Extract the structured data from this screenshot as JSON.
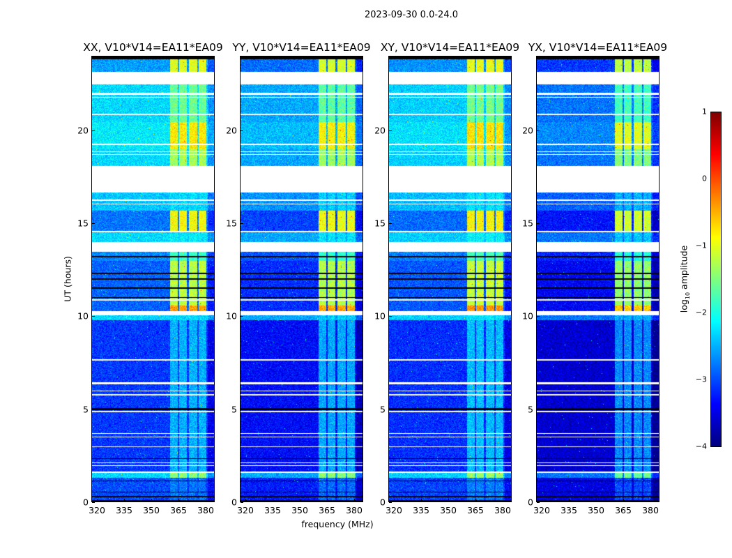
{
  "figure": {
    "suptitle": "2023-09-30 0.0-24.0",
    "xlabel": "frequency (MHz)",
    "ylabel": "UT (hours)"
  },
  "colorbar": {
    "label_prefix": "log",
    "label_sub": "10",
    "label_suffix": " amplitude",
    "range": [
      -4,
      1
    ],
    "ticks": [
      "−4",
      "−3",
      "−2",
      "−1",
      "0",
      "1"
    ],
    "tick_values": [
      -4,
      -3,
      -2,
      -1,
      0,
      1
    ],
    "colormap": "jet"
  },
  "chart_data": {
    "type": "heatmap",
    "xlim": [
      317.3,
      384.6
    ],
    "ylim": [
      0,
      24
    ],
    "xticks": [
      320,
      335,
      350,
      365,
      380
    ],
    "xtick_labels": [
      "320",
      "335",
      "350",
      "365",
      "380"
    ],
    "yticks": [
      0,
      5,
      10,
      15,
      20
    ],
    "ytick_labels": [
      "0",
      "5",
      "10",
      "15",
      "20"
    ],
    "bright_bands_mhz": [
      [
        360,
        364.6
      ],
      [
        365.2,
        369.6
      ],
      [
        370.5,
        375.2
      ],
      [
        376,
        380.2
      ]
    ],
    "time_segments": [
      {
        "from": 0,
        "to": 1.3,
        "bg": -3.0,
        "band": -2.8
      },
      {
        "from": 1.3,
        "to": 1.55,
        "bg": -2.3,
        "band": -1.4
      },
      {
        "from": 1.55,
        "to": 9.8,
        "bg": -3.1,
        "band": -2.5
      },
      {
        "from": 9.8,
        "to": 10.05,
        "bg": -2.3,
        "band": -2.3
      },
      {
        "from": 10.3,
        "to": 10.6,
        "bg": -2.9,
        "band": -0.4
      },
      {
        "from": 10.6,
        "to": 13.0,
        "bg": -2.9,
        "band": -1.2
      },
      {
        "from": 13.0,
        "to": 14.0,
        "bg": -2.7,
        "band": -1.8
      },
      {
        "from": 14.0,
        "to": 14.6,
        "bg": -2.3,
        "band": -2.2
      },
      {
        "from": 14.6,
        "to": 15.7,
        "bg": -2.8,
        "band": -0.9
      },
      {
        "from": 15.7,
        "to": 16.7,
        "bg": -2.4,
        "band": -2.3
      },
      {
        "from": 18.1,
        "to": 19.0,
        "bg": -2.3,
        "band": -1.3
      },
      {
        "from": 19.0,
        "to": 20.5,
        "bg": -2.2,
        "band": -0.8
      },
      {
        "from": 20.5,
        "to": 22.5,
        "bg": -2.3,
        "band": -1.6
      },
      {
        "from": 23.2,
        "to": 24,
        "bg": -2.6,
        "band": -1.0
      }
    ],
    "flagged_white_hours": [
      [
        22.5,
        23.2
      ],
      [
        21.95,
        22.05
      ],
      [
        21.8,
        21.85
      ],
      [
        20.85,
        20.92
      ],
      [
        19.25,
        19.32
      ],
      [
        18.85,
        18.9
      ],
      [
        18.72,
        18.77
      ],
      [
        16.7,
        17.2
      ],
      [
        16.25,
        16.3
      ],
      [
        16.05,
        16.1
      ],
      [
        14.55,
        14.62
      ],
      [
        13.5,
        14.0
      ],
      [
        10.05,
        10.3
      ],
      [
        10.85,
        10.92
      ],
      [
        7.6,
        7.7
      ],
      [
        6.35,
        6.45
      ],
      [
        5.95,
        6.0
      ],
      [
        5.75,
        5.8
      ],
      [
        4.85,
        4.9
      ],
      [
        3.65,
        3.7
      ],
      [
        3.48,
        3.53
      ],
      [
        2.95,
        3.0
      ],
      [
        2.08,
        2.12
      ],
      [
        1.95,
        1.98
      ],
      [
        1.55,
        1.65
      ]
    ],
    "flagged_black_hours": [
      [
        17.2,
        18.1
      ],
      [
        23.85,
        24
      ],
      [
        0.25,
        0.32
      ],
      [
        0.0,
        0.08
      ],
      [
        0.5,
        0.55
      ],
      [
        1.1,
        1.15
      ],
      [
        12.0,
        12.05
      ],
      [
        12.3,
        12.35
      ],
      [
        11.5,
        11.55
      ],
      [
        11.0,
        11.05
      ],
      [
        4.95,
        5.05
      ],
      [
        2.3,
        2.35
      ],
      [
        13.2,
        13.25
      ]
    ],
    "panels": [
      {
        "title": "XX, V10*V14=EA11*EA09",
        "bg_offset": 0.0,
        "band_offset": 0.0
      },
      {
        "title": "YY, V10*V14=EA11*EA09",
        "bg_offset": -0.25,
        "band_offset": -0.05
      },
      {
        "title": "XY, V10*V14=EA11*EA09",
        "bg_offset": -0.05,
        "band_offset": 0.05
      },
      {
        "title": "YX, V10*V14=EA11*EA09",
        "bg_offset": -0.5,
        "band_offset": -0.2
      }
    ]
  }
}
